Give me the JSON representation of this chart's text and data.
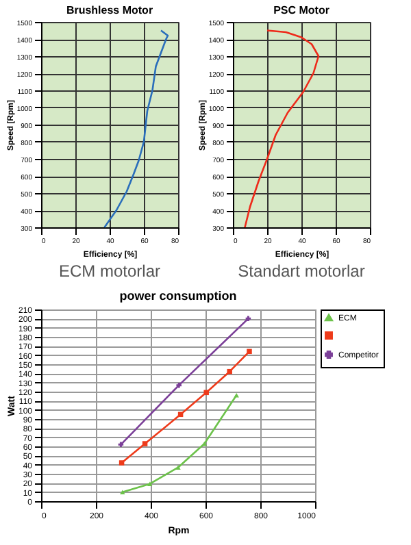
{
  "chart_data": [
    {
      "type": "line",
      "title": "Brushless Motor",
      "xlabel": "Efficiency [%]",
      "ylabel": "Speed [Rpm]",
      "annotations": [
        "ECM motorlar"
      ],
      "xlim": [
        0,
        80
      ],
      "xticks": [
        0,
        20,
        40,
        60,
        80
      ],
      "ylim": [
        300,
        1500
      ],
      "yticks": [
        300,
        400,
        500,
        600,
        700,
        800,
        900,
        1000,
        1100,
        1200,
        1300,
        1400,
        1500
      ],
      "grid": true,
      "line_style": "solid",
      "series": [
        {
          "color": "#2a6ebb",
          "x": [
            70,
            74,
            73,
            67,
            65,
            62,
            60,
            57,
            54,
            50,
            44,
            37
          ],
          "values": [
            1450,
            1420,
            1400,
            1240,
            1100,
            980,
            800,
            690,
            610,
            510,
            400,
            300
          ]
        }
      ]
    },
    {
      "type": "line",
      "title": "PSC Motor",
      "xlabel": "Efficiency [%]",
      "ylabel": "Speed [Rpm]",
      "annotations": [
        "Standart motorlar"
      ],
      "xlim": [
        0,
        80
      ],
      "xticks": [
        0,
        20,
        40,
        60,
        80
      ],
      "ylim": [
        300,
        1500
      ],
      "yticks": [
        300,
        400,
        500,
        600,
        700,
        800,
        900,
        1000,
        1100,
        1200,
        1300,
        1400,
        1500
      ],
      "grid": true,
      "line_style": "solid",
      "series": [
        {
          "color": "#ee2a1a",
          "x": [
            20,
            31,
            40,
            46,
            50,
            47,
            41,
            32,
            25,
            20,
            15,
            10,
            7
          ],
          "values": [
            1450,
            1440,
            1410,
            1370,
            1300,
            1200,
            1090,
            970,
            840,
            700,
            570,
            420,
            300
          ]
        }
      ]
    },
    {
      "type": "line",
      "title": "power consumption",
      "xlabel": "Rpm",
      "ylabel": "Watt",
      "xlim": [
        0,
        1000
      ],
      "xticks": [
        0,
        200,
        400,
        600,
        800,
        1000
      ],
      "ylim": [
        0,
        210
      ],
      "yticks": [
        0,
        10,
        20,
        30,
        40,
        50,
        60,
        70,
        80,
        90,
        100,
        110,
        120,
        130,
        140,
        150,
        160,
        170,
        180,
        190,
        200,
        210
      ],
      "grid": true,
      "legend": "right",
      "line_style": "solid",
      "series": [
        {
          "name": "ECM",
          "color": "#6cc24a",
          "marker": "triangle",
          "x": [
            297,
            397,
            500,
            596,
            713
          ],
          "values": [
            10,
            19,
            37,
            63,
            116
          ]
        },
        {
          "color": "#ee3a1a",
          "marker": "square",
          "x": [
            294,
            379,
            509,
            603,
            688,
            760
          ],
          "values": [
            42,
            63,
            95,
            119,
            142,
            164
          ]
        },
        {
          "name": "Competitor",
          "color": "#7b3f98",
          "marker": "cross",
          "x": [
            291,
            503,
            756
          ],
          "values": [
            62,
            127,
            200
          ]
        }
      ]
    }
  ]
}
